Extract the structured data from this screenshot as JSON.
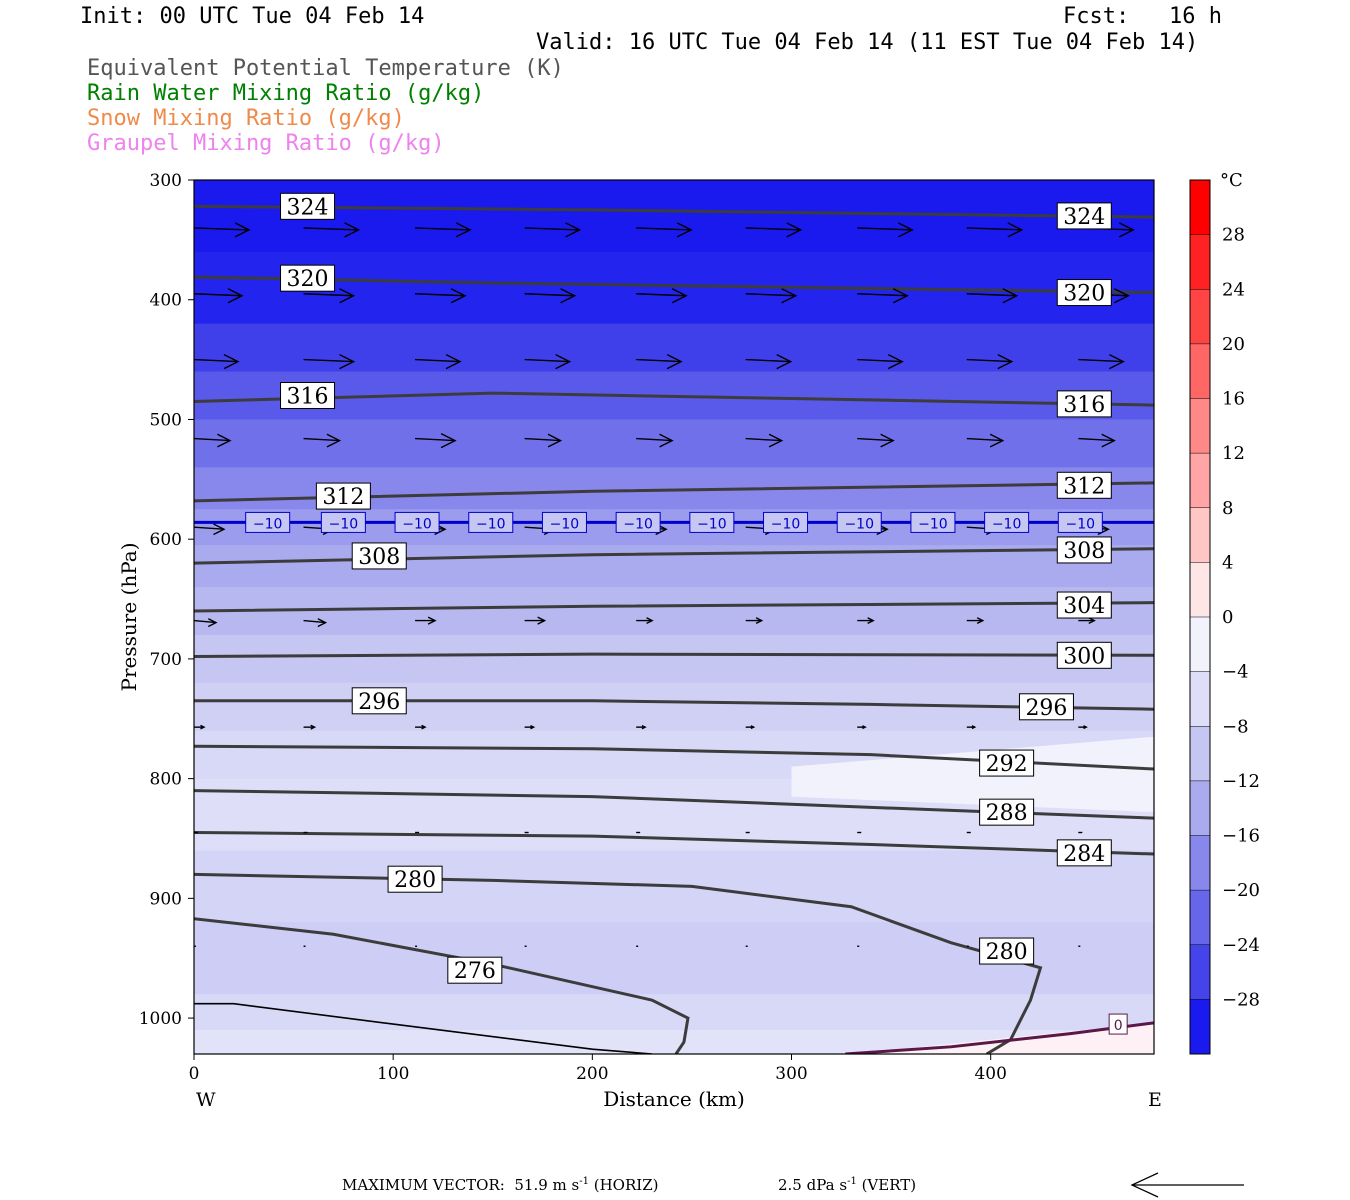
{
  "header": {
    "init": "Init: 00 UTC Tue 04 Feb 14",
    "fcst": "Fcst:   16 h",
    "valid": "Valid: 16 UTC Tue 04 Feb 14 (11 EST Tue 04 Feb 14)",
    "fields": [
      {
        "label": "Equivalent Potential Temperature (K)",
        "color": "#555555"
      },
      {
        "label": "Rain Water Mixing Ratio (g/kg)",
        "color": "#008000"
      },
      {
        "label": "Snow Mixing Ratio (g/kg)",
        "color": "#f08a4b"
      },
      {
        "label": "Graupel Mixing Ratio (g/kg)",
        "color": "#ee82ee"
      }
    ]
  },
  "chart_data": {
    "type": "cross-section",
    "xlabel": "Distance (km)",
    "ylabel": "Pressure (hPa)",
    "xlim": [
      0,
      482
    ],
    "ylim": [
      1030,
      300
    ],
    "x_ticks": [
      0,
      100,
      200,
      300,
      400
    ],
    "y_ticks": [
      300,
      400,
      500,
      600,
      700,
      800,
      900,
      1000
    ],
    "x_end_labels": {
      "left": "W",
      "right": "E"
    },
    "colorbar": {
      "unit": "°C",
      "tick_labels": [
        "28",
        "24",
        "20",
        "16",
        "12",
        "8",
        "4",
        "0",
        "−4",
        "−8",
        "−12",
        "−16",
        "−20",
        "−24",
        "−28"
      ],
      "tick_values": [
        28,
        24,
        20,
        16,
        12,
        8,
        4,
        0,
        -4,
        -8,
        -12,
        -16,
        -20,
        -24,
        -28
      ],
      "range": [
        -32,
        32
      ],
      "levels": [
        {
          "from": 28,
          "to": 32,
          "color": "#ff0000"
        },
        {
          "from": 24,
          "to": 28,
          "color": "#ff2222"
        },
        {
          "from": 20,
          "to": 24,
          "color": "#ff4444"
        },
        {
          "from": 16,
          "to": 20,
          "color": "#ff6666"
        },
        {
          "from": 12,
          "to": 16,
          "color": "#ff8888"
        },
        {
          "from": 8,
          "to": 12,
          "color": "#ffa5a5"
        },
        {
          "from": 4,
          "to": 8,
          "color": "#ffc6c6"
        },
        {
          "from": 0,
          "to": 4,
          "color": "#ffe6e6"
        },
        {
          "from": -4,
          "to": 0,
          "color": "#f2f2fc"
        },
        {
          "from": -8,
          "to": -4,
          "color": "#dedef8"
        },
        {
          "from": -12,
          "to": -8,
          "color": "#c6c6f3"
        },
        {
          "from": -16,
          "to": -12,
          "color": "#aaaaef"
        },
        {
          "from": -20,
          "to": -16,
          "color": "#8888ec"
        },
        {
          "from": -24,
          "to": -20,
          "color": "#6666ea"
        },
        {
          "from": -28,
          "to": -24,
          "color": "#4444ea"
        },
        {
          "from": -32,
          "to": -28,
          "color": "#1a1aee"
        }
      ]
    },
    "temperature_bands": [
      {
        "p": 300,
        "color": "#1a1aee"
      },
      {
        "p": 360,
        "color": "#2424ef"
      },
      {
        "p": 420,
        "color": "#4040ea"
      },
      {
        "p": 460,
        "color": "#5a5aea"
      },
      {
        "p": 500,
        "color": "#7070ea"
      },
      {
        "p": 540,
        "color": "#8888ec"
      },
      {
        "p": 575,
        "color": "#9c9cee"
      },
      {
        "p": 605,
        "color": "#aaaaef"
      },
      {
        "p": 640,
        "color": "#b8b8f1"
      },
      {
        "p": 680,
        "color": "#c6c6f3"
      },
      {
        "p": 720,
        "color": "#d0d0f5"
      },
      {
        "p": 760,
        "color": "#d8d8f7"
      },
      {
        "p": 800,
        "color": "#dedef8"
      },
      {
        "p": 860,
        "color": "#d4d4f6"
      },
      {
        "p": 920,
        "color": "#cdcdf5"
      },
      {
        "p": 980,
        "color": "#d8d8f7"
      },
      {
        "p": 1010,
        "color": "#e2e2f9"
      }
    ],
    "theta_e_contours": [
      {
        "value": 324,
        "points": [
          [
            0,
            322
          ],
          [
            200,
            325
          ],
          [
            482,
            331
          ]
        ],
        "labels": [
          [
            57,
            322
          ],
          [
            447,
            330
          ]
        ]
      },
      {
        "value": 320,
        "points": [
          [
            0,
            381
          ],
          [
            150,
            386
          ],
          [
            482,
            394
          ]
        ],
        "labels": [
          [
            57,
            382
          ],
          [
            447,
            394
          ]
        ]
      },
      {
        "value": 316,
        "points": [
          [
            0,
            485
          ],
          [
            150,
            478
          ],
          [
            482,
            488
          ]
        ],
        "labels": [
          [
            57,
            480
          ],
          [
            447,
            487
          ]
        ]
      },
      {
        "value": 312,
        "points": [
          [
            0,
            568
          ],
          [
            200,
            560
          ],
          [
            482,
            553
          ]
        ],
        "labels": [
          [
            75,
            564
          ],
          [
            447,
            555
          ]
        ]
      },
      {
        "value": 308,
        "points": [
          [
            0,
            620
          ],
          [
            200,
            613
          ],
          [
            482,
            608
          ]
        ],
        "labels": [
          [
            93,
            614
          ],
          [
            447,
            609
          ]
        ]
      },
      {
        "value": 304,
        "points": [
          [
            0,
            660
          ],
          [
            200,
            656
          ],
          [
            482,
            653
          ]
        ],
        "labels": [
          [
            447,
            655
          ]
        ]
      },
      {
        "value": 300,
        "points": [
          [
            0,
            698
          ],
          [
            200,
            696
          ],
          [
            482,
            697
          ]
        ],
        "labels": [
          [
            447,
            697
          ]
        ]
      },
      {
        "value": 296,
        "points": [
          [
            0,
            735
          ],
          [
            200,
            735
          ],
          [
            340,
            738
          ],
          [
            482,
            742
          ]
        ],
        "labels": [
          [
            93,
            735
          ],
          [
            428,
            740
          ]
        ]
      },
      {
        "value": 292,
        "points": [
          [
            0,
            773
          ],
          [
            200,
            775
          ],
          [
            340,
            780
          ],
          [
            482,
            792
          ]
        ],
        "labels": [
          [
            408,
            787
          ]
        ]
      },
      {
        "value": 288,
        "points": [
          [
            0,
            810
          ],
          [
            200,
            815
          ],
          [
            340,
            824
          ],
          [
            482,
            833
          ]
        ],
        "labels": [
          [
            408,
            828
          ]
        ]
      },
      {
        "value": 284,
        "points": [
          [
            0,
            845
          ],
          [
            200,
            848
          ],
          [
            340,
            855
          ],
          [
            482,
            863
          ]
        ],
        "labels": [
          [
            447,
            862
          ]
        ]
      },
      {
        "value": 280,
        "points": [
          [
            0,
            880
          ],
          [
            150,
            885
          ],
          [
            250,
            890
          ],
          [
            330,
            907
          ],
          [
            380,
            937
          ],
          [
            425,
            958
          ],
          [
            420,
            985
          ],
          [
            410,
            1018
          ],
          [
            398,
            1030
          ]
        ],
        "labels": [
          [
            111,
            884
          ],
          [
            408,
            944
          ]
        ]
      },
      {
        "value": 276,
        "points": [
          [
            0,
            917
          ],
          [
            70,
            930
          ],
          [
            150,
            955
          ],
          [
            230,
            985
          ],
          [
            248,
            1000
          ],
          [
            246,
            1020
          ],
          [
            242,
            1030
          ]
        ],
        "labels": [
          [
            141,
            960
          ]
        ]
      }
    ],
    "freezing_lines": [
      {
        "value": -10,
        "color": "#0000cc",
        "points": [
          [
            0,
            586
          ],
          [
            482,
            586
          ]
        ],
        "labels": [
          [
            37,
            586
          ],
          [
            75,
            586
          ],
          [
            112,
            586
          ],
          [
            149,
            586
          ],
          [
            186,
            586
          ],
          [
            223,
            586
          ],
          [
            260,
            586
          ],
          [
            297,
            586
          ],
          [
            334,
            586
          ],
          [
            371,
            586
          ],
          [
            408,
            586
          ],
          [
            445,
            586
          ]
        ]
      },
      {
        "value": 0,
        "color": "#5a1848",
        "points": [
          [
            327,
            1030
          ],
          [
            380,
            1024
          ],
          [
            440,
            1013
          ],
          [
            482,
            1004
          ]
        ],
        "labels": [
          [
            464,
            1005
          ]
        ]
      }
    ],
    "terrain_line": {
      "color": "#000000",
      "points": [
        [
          0,
          988
        ],
        [
          20,
          988
        ],
        [
          100,
          1005
        ],
        [
          200,
          1026
        ],
        [
          230,
          1030
        ]
      ]
    },
    "wind_vectors": [
      {
        "p": 340,
        "x": [
          0,
          55,
          111,
          166,
          222,
          277,
          333,
          388,
          444
        ],
        "len": [
          55,
          55,
          55,
          55,
          55,
          55,
          55,
          55,
          55
        ]
      },
      {
        "p": 395,
        "x": [
          0,
          55,
          111,
          166,
          222,
          277,
          333,
          388,
          444
        ],
        "len": [
          48,
          50,
          50,
          50,
          50,
          50,
          50,
          50,
          50
        ]
      },
      {
        "p": 450,
        "x": [
          0,
          55,
          111,
          166,
          222,
          277,
          333,
          388,
          444
        ],
        "len": [
          44,
          50,
          45,
          45,
          45,
          45,
          45,
          45,
          45
        ]
      },
      {
        "p": 516,
        "x": [
          0,
          55,
          111,
          166,
          222,
          277,
          333,
          388,
          444
        ],
        "len": [
          36,
          36,
          40,
          36,
          36,
          36,
          36,
          36,
          36
        ]
      },
      {
        "p": 590,
        "x": [
          0,
          55,
          111,
          166,
          222,
          277,
          333,
          388,
          444
        ],
        "len": [
          30,
          30,
          30,
          30,
          30,
          30,
          30,
          30,
          30
        ]
      },
      {
        "p": 668,
        "x": [
          0,
          55,
          111,
          166,
          222,
          277,
          333,
          388,
          444
        ],
        "len": [
          22,
          22,
          20,
          20,
          16,
          16,
          16,
          16,
          16
        ]
      },
      {
        "p": 757,
        "x": [
          0,
          55,
          111,
          166,
          222,
          277,
          333,
          388,
          444
        ],
        "len": [
          10,
          11,
          10,
          9,
          9,
          8,
          8,
          8,
          8
        ]
      },
      {
        "p": 845,
        "x": [
          0,
          55,
          111,
          166,
          222,
          277,
          333,
          388,
          444
        ],
        "len": [
          4,
          4,
          4,
          4,
          4,
          4,
          4,
          4,
          4
        ]
      },
      {
        "p": 940,
        "x": [
          0,
          55,
          111,
          166,
          222,
          277,
          333,
          388,
          444
        ],
        "len": [
          2,
          2,
          2,
          2,
          2,
          2,
          2,
          2,
          2
        ]
      }
    ]
  },
  "footer": {
    "max_vector_label": "MAXIMUM VECTOR:  51.9 m s",
    "horiz_exp": "-1",
    "horiz_tag": " (HORIZ)",
    "vert_label": "2.5 dPa s",
    "vert_exp": "-1",
    "vert_tag": " (VERT)"
  }
}
